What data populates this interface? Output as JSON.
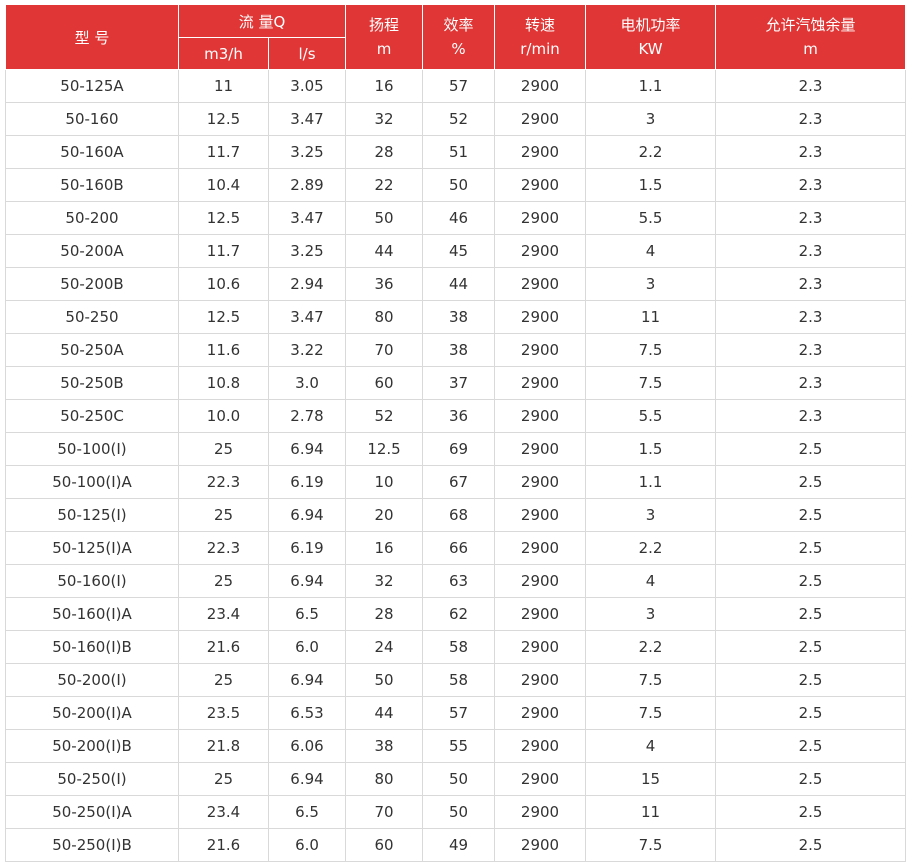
{
  "header": {
    "model": "型 号",
    "flow": "流 量Q",
    "flow_m3h": "m3/h",
    "flow_ls": "l/s",
    "head": "扬程",
    "head_unit": "m",
    "efficiency": "效率",
    "efficiency_unit": "%",
    "speed": "转速",
    "speed_unit": "r/min",
    "power": "电机功率",
    "power_unit": "KW",
    "npsh": "允许汽蚀余量",
    "npsh_unit": "m"
  },
  "rows": [
    [
      "50-125A",
      "11",
      "3.05",
      "16",
      "57",
      "2900",
      "1.1",
      "2.3"
    ],
    [
      "50-160",
      "12.5",
      "3.47",
      "32",
      "52",
      "2900",
      "3",
      "2.3"
    ],
    [
      "50-160A",
      "11.7",
      "3.25",
      "28",
      "51",
      "2900",
      "2.2",
      "2.3"
    ],
    [
      "50-160B",
      "10.4",
      "2.89",
      "22",
      "50",
      "2900",
      "1.5",
      "2.3"
    ],
    [
      "50-200",
      "12.5",
      "3.47",
      "50",
      "46",
      "2900",
      "5.5",
      "2.3"
    ],
    [
      "50-200A",
      "11.7",
      "3.25",
      "44",
      "45",
      "2900",
      "4",
      "2.3"
    ],
    [
      "50-200B",
      "10.6",
      "2.94",
      "36",
      "44",
      "2900",
      "3",
      "2.3"
    ],
    [
      "50-250",
      "12.5",
      "3.47",
      "80",
      "38",
      "2900",
      "11",
      "2.3"
    ],
    [
      "50-250A",
      "11.6",
      "3.22",
      "70",
      "38",
      "2900",
      "7.5",
      "2.3"
    ],
    [
      "50-250B",
      "10.8",
      "3.0",
      "60",
      "37",
      "2900",
      "7.5",
      "2.3"
    ],
    [
      "50-250C",
      "10.0",
      "2.78",
      "52",
      "36",
      "2900",
      "5.5",
      "2.3"
    ],
    [
      "50-100(I)",
      "25",
      "6.94",
      "12.5",
      "69",
      "2900",
      "1.5",
      "2.5"
    ],
    [
      "50-100(I)A",
      "22.3",
      "6.19",
      "10",
      "67",
      "2900",
      "1.1",
      "2.5"
    ],
    [
      "50-125(I)",
      "25",
      "6.94",
      "20",
      "68",
      "2900",
      "3",
      "2.5"
    ],
    [
      "50-125(I)A",
      "22.3",
      "6.19",
      "16",
      "66",
      "2900",
      "2.2",
      "2.5"
    ],
    [
      "50-160(I)",
      "25",
      "6.94",
      "32",
      "63",
      "2900",
      "4",
      "2.5"
    ],
    [
      "50-160(I)A",
      "23.4",
      "6.5",
      "28",
      "62",
      "2900",
      "3",
      "2.5"
    ],
    [
      "50-160(I)B",
      "21.6",
      "6.0",
      "24",
      "58",
      "2900",
      "2.2",
      "2.5"
    ],
    [
      "50-200(I)",
      "25",
      "6.94",
      "50",
      "58",
      "2900",
      "7.5",
      "2.5"
    ],
    [
      "50-200(I)A",
      "23.5",
      "6.53",
      "44",
      "57",
      "2900",
      "7.5",
      "2.5"
    ],
    [
      "50-200(I)B",
      "21.8",
      "6.06",
      "38",
      "55",
      "2900",
      "4",
      "2.5"
    ],
    [
      "50-250(I)",
      "25",
      "6.94",
      "80",
      "50",
      "2900",
      "15",
      "2.5"
    ],
    [
      "50-250(I)A",
      "23.4",
      "6.5",
      "70",
      "50",
      "2900",
      "11",
      "2.5"
    ],
    [
      "50-250(I)B",
      "21.6",
      "6.0",
      "60",
      "49",
      "2900",
      "7.5",
      "2.5"
    ]
  ]
}
